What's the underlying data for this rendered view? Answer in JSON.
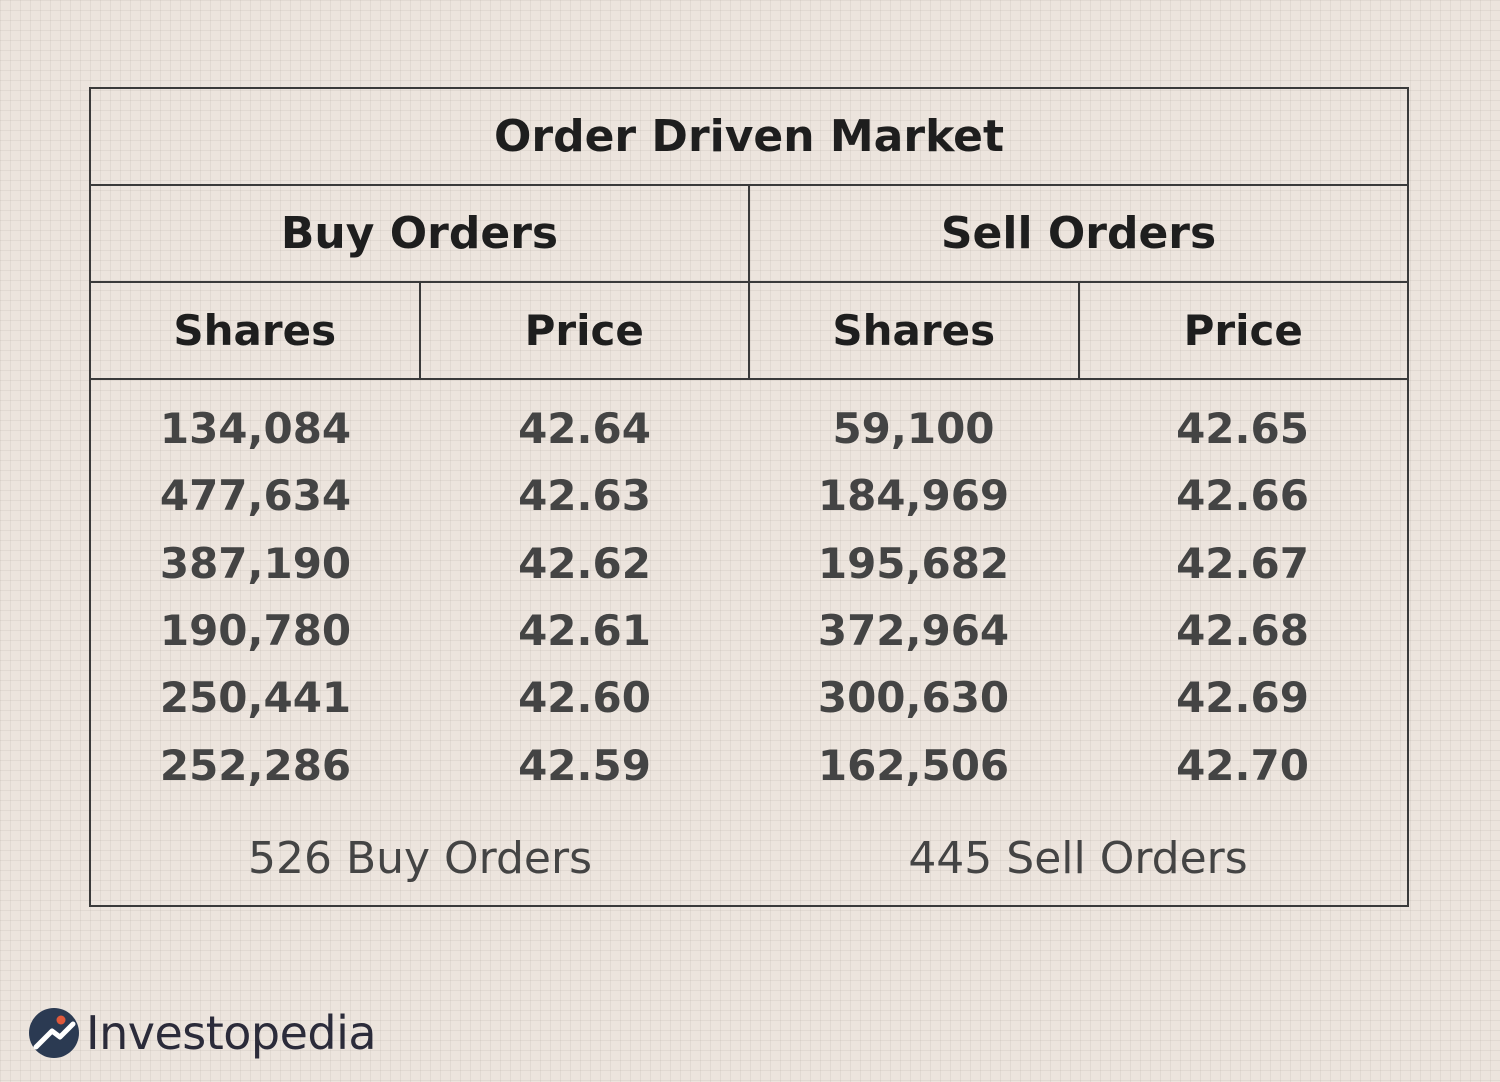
{
  "table": {
    "title": "Order Driven Market",
    "groups": [
      "Buy Orders",
      "Sell Orders"
    ],
    "columns": [
      "Shares",
      "Price",
      "Shares",
      "Price"
    ],
    "rows": [
      [
        "134,084",
        "42.64",
        "59,100",
        "42.65"
      ],
      [
        "477,634",
        "42.63",
        "184,969",
        "42.66"
      ],
      [
        "387,190",
        "42.62",
        "195,682",
        "42.67"
      ],
      [
        "190,780",
        "42.61",
        "372,964",
        "42.68"
      ],
      [
        "250,441",
        "42.60",
        "300,630",
        "42.69"
      ],
      [
        "252,286",
        "42.59",
        "162,506",
        "42.70"
      ]
    ],
    "footer": [
      "526 Buy Orders",
      "445 Sell Orders"
    ]
  },
  "brand": {
    "name": "Investopedia",
    "icon": "investopedia-logo-icon",
    "mark_color": "#2b3a52",
    "accent_color": "#e0593b"
  }
}
